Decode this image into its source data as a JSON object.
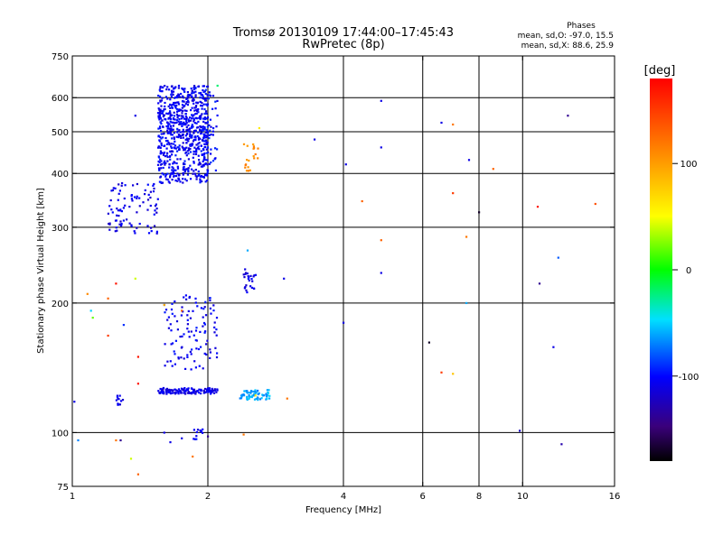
{
  "chart_data": {
    "type": "scatter",
    "title": "Tromsø 20130109 17:44:00–17:45:43",
    "subtitle": "RwPretec (8p)",
    "xlabel": "Frequency [MHz]",
    "ylabel": "Stationary phase Virtual Height [km]",
    "xscale": "log",
    "yscale": "log",
    "xlim": [
      1,
      16
    ],
    "ylim": [
      75,
      750
    ],
    "x_ticks": [
      {
        "value": 1,
        "label": "1"
      },
      {
        "value": 2,
        "label": "2"
      },
      {
        "value": 4,
        "label": "4"
      },
      {
        "value": 6,
        "label": "6"
      },
      {
        "value": 8,
        "label": "8"
      },
      {
        "value": 10,
        "label": "10"
      },
      {
        "value": 16,
        "label": "16"
      }
    ],
    "y_ticks": [
      {
        "value": 75,
        "label": "75"
      },
      {
        "value": 100,
        "label": "100"
      },
      {
        "value": 200,
        "label": "200"
      },
      {
        "value": 300,
        "label": "300"
      },
      {
        "value": 400,
        "label": "400"
      },
      {
        "value": 500,
        "label": "500"
      },
      {
        "value": 600,
        "label": "600"
      },
      {
        "value": 750,
        "label": "750"
      }
    ],
    "grid": true,
    "grid_x": [
      2,
      4,
      6,
      8,
      10
    ],
    "grid_y": [
      100,
      200,
      300,
      400,
      500,
      600
    ],
    "stats": {
      "heading": "Phases",
      "line_o": "mean, sd,O: -97.0, 15.5",
      "line_x": "mean, sd,X:  88.6, 25.9"
    },
    "colorbar": {
      "label": "[deg]",
      "min": -180,
      "max": 180,
      "ticks": [
        {
          "value": 100,
          "label": "100"
        },
        {
          "value": 0,
          "label": "0"
        },
        {
          "value": -100,
          "label": "-100"
        }
      ]
    },
    "clusters": [
      {
        "fmin": 1.55,
        "fmax": 2.0,
        "hmin": 380,
        "hmax": 640,
        "phase": -105,
        "n": 700,
        "seed": 11
      },
      {
        "fmin": 1.95,
        "fmax": 2.1,
        "hmin": 400,
        "hmax": 630,
        "phase": -100,
        "n": 60,
        "seed": 12
      },
      {
        "fmin": 1.2,
        "fmax": 1.55,
        "hmin": 290,
        "hmax": 380,
        "phase": -110,
        "n": 90,
        "seed": 13
      },
      {
        "fmin": 1.55,
        "fmax": 2.1,
        "hmin": 123,
        "hmax": 127,
        "phase": -110,
        "n": 130,
        "seed": 14
      },
      {
        "fmin": 1.6,
        "fmax": 2.1,
        "hmin": 140,
        "hmax": 210,
        "phase": -105,
        "n": 110,
        "seed": 15
      },
      {
        "fmin": 2.35,
        "fmax": 2.75,
        "hmin": 119,
        "hmax": 126,
        "phase": -60,
        "n": 60,
        "seed": 16
      },
      {
        "fmin": 2.4,
        "fmax": 2.6,
        "hmin": 210,
        "hmax": 240,
        "phase": -110,
        "n": 25,
        "seed": 17
      },
      {
        "fmin": 2.4,
        "fmax": 2.6,
        "hmin": 405,
        "hmax": 470,
        "phase": 110,
        "n": 20,
        "seed": 18
      },
      {
        "fmin": 1.25,
        "fmax": 1.3,
        "hmin": 116,
        "hmax": 122,
        "phase": -110,
        "n": 12,
        "seed": 19
      },
      {
        "fmin": 1.85,
        "fmax": 1.95,
        "hmin": 96,
        "hmax": 102,
        "phase": -105,
        "n": 12,
        "seed": 20
      }
    ],
    "points": [
      [
        1.38,
        545,
        -110
      ],
      [
        2.1,
        640,
        -20
      ],
      [
        2.6,
        510,
        60
      ],
      [
        3.45,
        480,
        -110
      ],
      [
        4.05,
        420,
        -110
      ],
      [
        4.85,
        590,
        -110
      ],
      [
        4.85,
        460,
        -110
      ],
      [
        6.6,
        525,
        -110
      ],
      [
        7.0,
        520,
        120
      ],
      [
        7.6,
        430,
        -110
      ],
      [
        8.6,
        410,
        130
      ],
      [
        12.6,
        545,
        -140
      ],
      [
        4.4,
        345,
        130
      ],
      [
        7.0,
        360,
        150
      ],
      [
        8.0,
        325,
        -170
      ],
      [
        10.8,
        335,
        170
      ],
      [
        14.5,
        340,
        140
      ],
      [
        2.45,
        265,
        -60
      ],
      [
        4.85,
        280,
        130
      ],
      [
        7.5,
        285,
        120
      ],
      [
        4.85,
        235,
        -110
      ],
      [
        12.0,
        255,
        -80
      ],
      [
        2.95,
        228,
        -110
      ],
      [
        10.9,
        222,
        -140
      ],
      [
        1.08,
        210,
        110
      ],
      [
        1.25,
        222,
        170
      ],
      [
        1.38,
        228,
        40
      ],
      [
        1.1,
        192,
        -50
      ],
      [
        1.11,
        185,
        20
      ],
      [
        1.2,
        205,
        130
      ],
      [
        1.3,
        178,
        -90
      ],
      [
        1.2,
        168,
        150
      ],
      [
        1.4,
        150,
        170
      ],
      [
        1.4,
        130,
        170
      ],
      [
        1.6,
        198,
        90
      ],
      [
        1.75,
        192,
        130
      ],
      [
        4.0,
        180,
        -110
      ],
      [
        7.5,
        200,
        -60
      ],
      [
        6.2,
        162,
        -170
      ],
      [
        11.7,
        158,
        -110
      ],
      [
        6.6,
        138,
        150
      ],
      [
        7.0,
        137,
        80
      ],
      [
        2.55,
        122,
        60
      ],
      [
        3.0,
        120,
        120
      ],
      [
        1.01,
        118,
        -110
      ],
      [
        1.03,
        96,
        -70
      ],
      [
        1.25,
        96,
        120
      ],
      [
        1.28,
        96,
        -140
      ],
      [
        1.6,
        100,
        -110
      ],
      [
        1.65,
        95,
        -110
      ],
      [
        1.75,
        97,
        -110
      ],
      [
        2.0,
        98,
        -140
      ],
      [
        2.4,
        99,
        120
      ],
      [
        1.35,
        87,
        40
      ],
      [
        1.85,
        88,
        120
      ],
      [
        1.4,
        80,
        130
      ],
      [
        9.85,
        101,
        -120
      ],
      [
        12.2,
        94,
        -130
      ]
    ]
  }
}
